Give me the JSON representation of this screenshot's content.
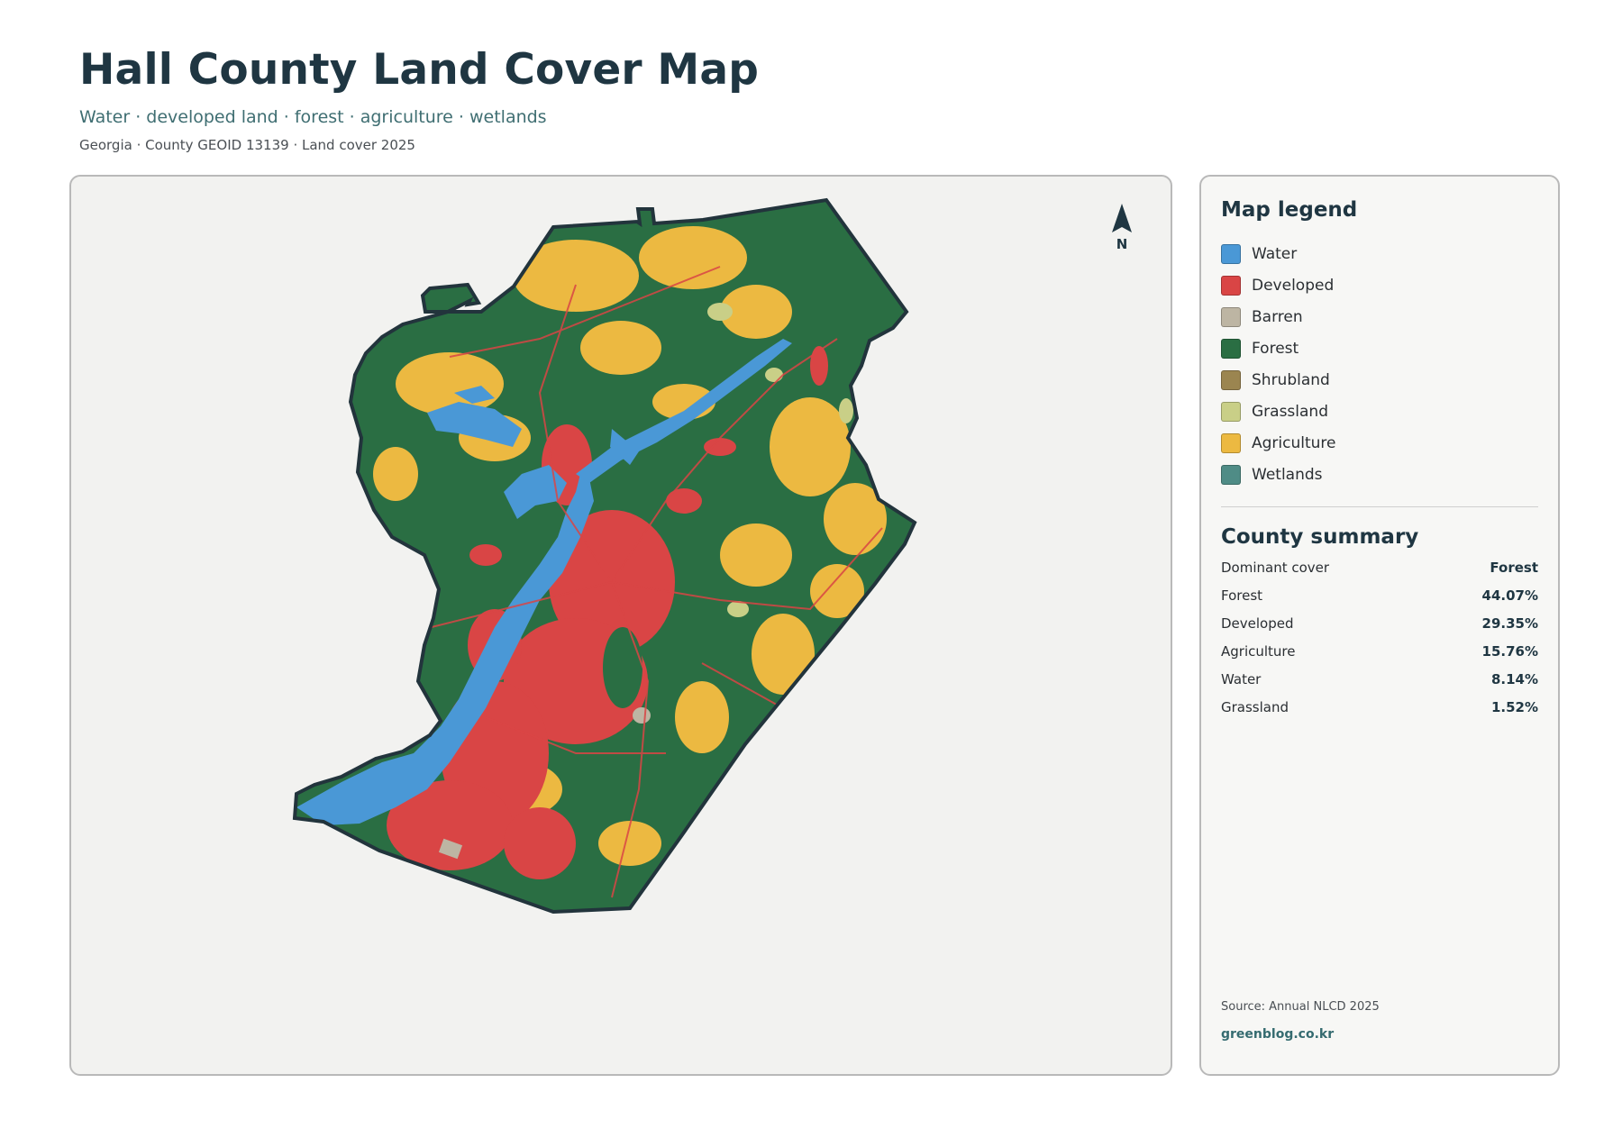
{
  "header": {
    "title": "Hall County Land Cover Map",
    "subtitle": "Water · developed land · forest · agriculture · wetlands",
    "meta": "Georgia · County GEOID 13139 · Land cover 2025"
  },
  "map": {
    "north_label": "N",
    "icon": "north-arrow-icon"
  },
  "legend": {
    "title": "Map legend",
    "items": [
      {
        "label": "Water",
        "color": "#4a98d6"
      },
      {
        "label": "Developed",
        "color": "#d94545"
      },
      {
        "label": "Barren",
        "color": "#bdb5a3"
      },
      {
        "label": "Forest",
        "color": "#2a6e43"
      },
      {
        "label": "Shrubland",
        "color": "#9b8550"
      },
      {
        "label": "Grassland",
        "color": "#c9cf87"
      },
      {
        "label": "Agriculture",
        "color": "#ecb941"
      },
      {
        "label": "Wetlands",
        "color": "#4f8c86"
      }
    ]
  },
  "summary": {
    "title": "County summary",
    "rows": [
      {
        "label": "Dominant cover",
        "value": "Forest"
      },
      {
        "label": "Forest",
        "value": "44.07%"
      },
      {
        "label": "Developed",
        "value": "29.35%"
      },
      {
        "label": "Agriculture",
        "value": "15.76%"
      },
      {
        "label": "Water",
        "value": "8.14%"
      },
      {
        "label": "Grassland",
        "value": "1.52%"
      }
    ]
  },
  "footer": {
    "source": "Source: Annual NLCD 2025",
    "site": "greenblog.co.kr"
  }
}
